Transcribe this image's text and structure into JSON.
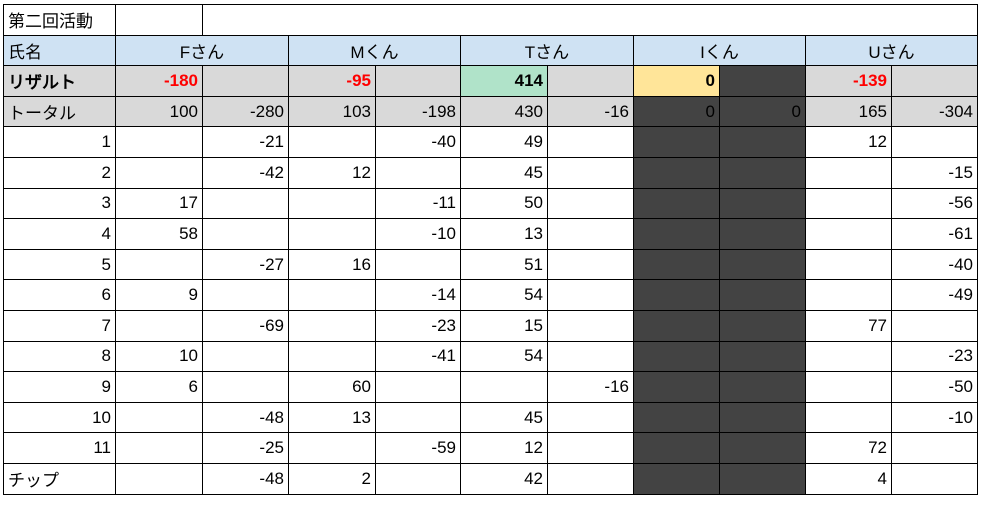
{
  "title": "第二回活動",
  "header_label": "氏名",
  "result_label": "リザルト",
  "total_label": "トータル",
  "chip_label": "チップ",
  "players": [
    {
      "name": "Fさん",
      "result": "-180",
      "total": [
        "100",
        "-280"
      ]
    },
    {
      "name": "Mくん",
      "result": "-95",
      "total": [
        "103",
        "-198"
      ]
    },
    {
      "name": "Tさん",
      "result": "414",
      "total": [
        "430",
        "-16"
      ]
    },
    {
      "name": "Iくん",
      "result": "0",
      "total": [
        "0",
        "0"
      ]
    },
    {
      "name": "Uさん",
      "result": "-139",
      "total": [
        "165",
        "-304"
      ]
    }
  ],
  "rounds": [
    {
      "label": "1",
      "cells": [
        "",
        "-21",
        "",
        "-40",
        "49",
        "",
        "",
        "",
        "12",
        ""
      ]
    },
    {
      "label": "2",
      "cells": [
        "",
        "-42",
        "12",
        "",
        "45",
        "",
        "",
        "",
        "",
        "-15"
      ]
    },
    {
      "label": "3",
      "cells": [
        "17",
        "",
        "",
        "-11",
        "50",
        "",
        "",
        "",
        "",
        "-56"
      ]
    },
    {
      "label": "4",
      "cells": [
        "58",
        "",
        "",
        "-10",
        "13",
        "",
        "",
        "",
        "",
        "-61"
      ]
    },
    {
      "label": "5",
      "cells": [
        "",
        "-27",
        "16",
        "",
        "51",
        "",
        "",
        "",
        "",
        "-40"
      ]
    },
    {
      "label": "6",
      "cells": [
        "9",
        "",
        "",
        "-14",
        "54",
        "",
        "",
        "",
        "",
        "-49"
      ]
    },
    {
      "label": "7",
      "cells": [
        "",
        "-69",
        "",
        "-23",
        "15",
        "",
        "",
        "",
        "77",
        ""
      ]
    },
    {
      "label": "8",
      "cells": [
        "10",
        "",
        "",
        "-41",
        "54",
        "",
        "",
        "",
        "",
        "-23"
      ]
    },
    {
      "label": "9",
      "cells": [
        "6",
        "",
        "60",
        "",
        "",
        "-16",
        "",
        "",
        "",
        "-50"
      ]
    },
    {
      "label": "10",
      "cells": [
        "",
        "-48",
        "13",
        "",
        "45",
        "",
        "",
        "",
        "",
        "-10"
      ]
    },
    {
      "label": "11",
      "cells": [
        "",
        "-25",
        "",
        "-59",
        "12",
        "",
        "",
        "",
        "72",
        ""
      ]
    }
  ],
  "chip": [
    "",
    "-48",
    "2",
    "",
    "42",
    "",
    "",
    "",
    "4",
    ""
  ],
  "colors": {
    "header": "#cfe2f3",
    "gray": "#d9d9d9",
    "negative": "#ff0000",
    "top": "#b0e3c9",
    "highlight": "#ffe599",
    "absent": "#434343"
  }
}
